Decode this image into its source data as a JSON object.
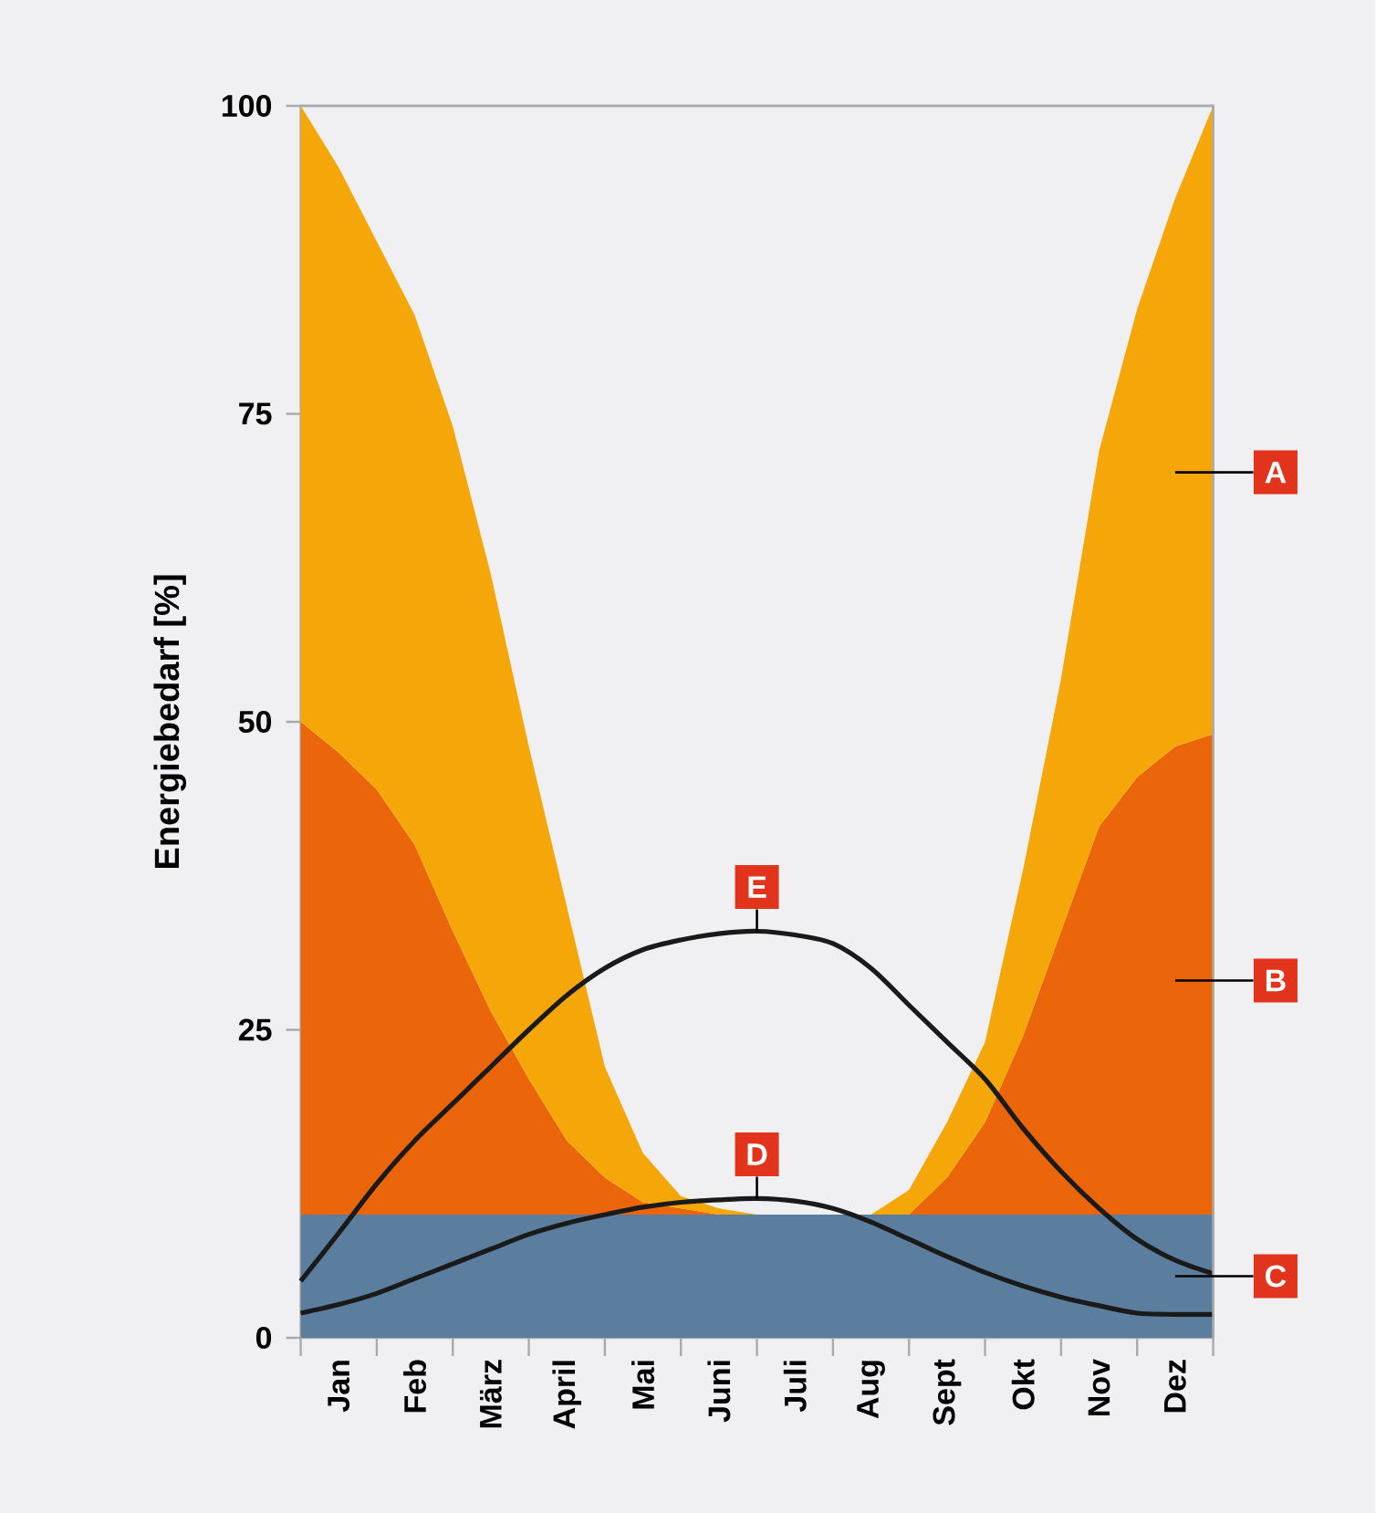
{
  "chart_data": {
    "type": "area",
    "stacked": true,
    "ylabel": "Energiebedarf [%]",
    "categories": [
      null,
      "Jan",
      null,
      "Feb",
      null,
      "März",
      null,
      "April",
      null,
      "Mai",
      null,
      "Juni",
      null,
      "Juli",
      null,
      "Aug",
      null,
      "Sept",
      null,
      "Okt",
      null,
      "Nov",
      null,
      "Dez",
      null
    ],
    "ylim": [
      0,
      100
    ],
    "yticks": [
      0,
      25,
      50,
      75,
      100
    ],
    "series": [
      {
        "name": "C",
        "color": "#5b7d9e",
        "values": [
          10,
          10,
          10,
          10,
          10,
          10,
          10,
          10,
          10,
          10,
          10,
          10,
          10,
          10,
          10,
          10,
          10,
          10,
          10,
          10,
          10,
          10,
          10,
          10,
          10
        ]
      },
      {
        "name": "B",
        "color": "#eb650a",
        "values": [
          40,
          37.5,
          34.5,
          30,
          23,
          16.5,
          11,
          6,
          3,
          1,
          0.5,
          0,
          0,
          0,
          0,
          0,
          0,
          3,
          7.5,
          14.5,
          23,
          31.5,
          35.5,
          38,
          39
        ]
      },
      {
        "name": "A",
        "color": "#f5a70a",
        "values": [
          50,
          47.5,
          44.5,
          43,
          41,
          35.5,
          27,
          19,
          9,
          4,
          1,
          0.5,
          0,
          0,
          0,
          0,
          2,
          4.5,
          6.5,
          13.5,
          20.5,
          30.5,
          38,
          44.5,
          51
        ]
      },
      {
        "name": "D",
        "type": "line",
        "color": "#1a1a1a",
        "values": [
          2,
          2.7,
          3.6,
          4.8,
          6,
          7.2,
          8.4,
          9.3,
          10,
          10.6,
          11,
          11.2,
          11.3,
          11.1,
          10.5,
          9.4,
          8,
          6.6,
          5.3,
          4.2,
          3.3,
          2.6,
          2,
          1.9,
          1.9
        ]
      },
      {
        "name": "E",
        "type": "line",
        "color": "#1a1a1a",
        "values": [
          4.6,
          8.5,
          12.5,
          16,
          19,
          22,
          25,
          27.8,
          30,
          31.5,
          32.3,
          32.8,
          33,
          32.7,
          32,
          30,
          27,
          24,
          21,
          17,
          13.5,
          10.5,
          8,
          6.3,
          5.2
        ]
      }
    ]
  }
}
